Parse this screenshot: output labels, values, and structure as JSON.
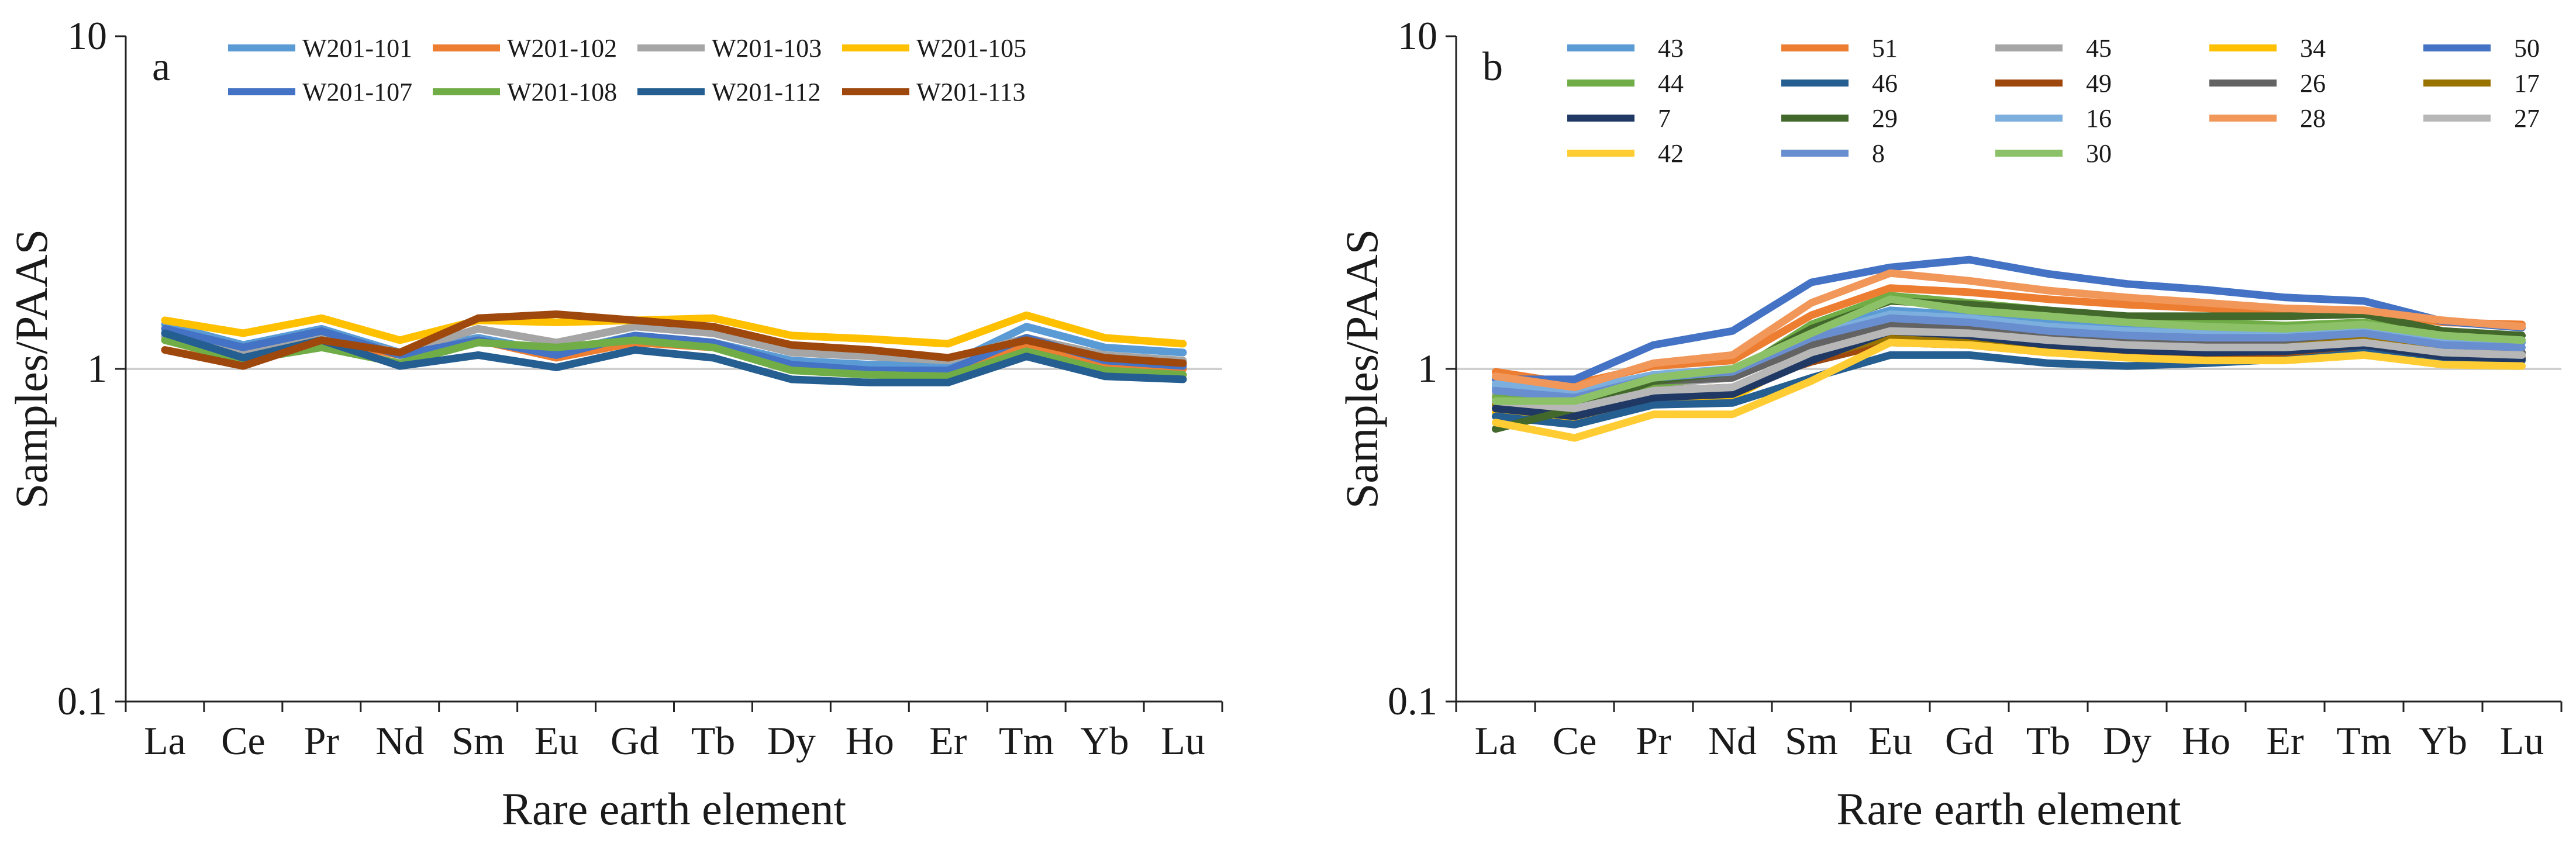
{
  "chart_data": [
    {
      "type": "line",
      "panel_label": "a",
      "xlabel": "Rare earth element",
      "ylabel": "Samples/PAAS",
      "yscale": "log",
      "ylim": [
        0.1,
        10
      ],
      "y_tick_labels": [
        "10",
        "1",
        "0.1"
      ],
      "grid": "horizontal line at 1",
      "legend_position": "top",
      "categories": [
        "La",
        "Ce",
        "Pr",
        "Nd",
        "Sm",
        "Eu",
        "Gd",
        "Tb",
        "Dy",
        "Ho",
        "Er",
        "Tm",
        "Yb",
        "Lu"
      ],
      "series": [
        {
          "name": "W201-101",
          "color": "#5b9bd5",
          "values": [
            1.36,
            1.18,
            1.32,
            1.12,
            1.24,
            1.12,
            1.26,
            1.2,
            1.06,
            1.03,
            1.03,
            1.34,
            1.16,
            1.12
          ]
        },
        {
          "name": "W201-102",
          "color": "#ed7d31",
          "values": [
            1.14,
            1.03,
            1.22,
            1.1,
            1.22,
            1.08,
            1.2,
            1.16,
            1.0,
            0.98,
            0.97,
            1.17,
            1.03,
            1.0
          ]
        },
        {
          "name": "W201-103",
          "color": "#a5a5a5",
          "values": [
            1.25,
            1.12,
            1.25,
            1.12,
            1.32,
            1.2,
            1.34,
            1.28,
            1.12,
            1.09,
            1.06,
            1.24,
            1.1,
            1.06
          ]
        },
        {
          "name": "W201-105",
          "color": "#ffc000",
          "values": [
            1.4,
            1.28,
            1.42,
            1.22,
            1.4,
            1.38,
            1.4,
            1.42,
            1.26,
            1.23,
            1.19,
            1.45,
            1.24,
            1.19
          ]
        },
        {
          "name": "W201-107",
          "color": "#4472c4",
          "values": [
            1.32,
            1.16,
            1.3,
            1.1,
            1.22,
            1.1,
            1.26,
            1.2,
            1.03,
            0.99,
            0.99,
            1.24,
            1.06,
            1.02
          ]
        },
        {
          "name": "W201-108",
          "color": "#70ad47",
          "values": [
            1.22,
            1.06,
            1.16,
            1.04,
            1.2,
            1.16,
            1.22,
            1.16,
            0.99,
            0.96,
            0.95,
            1.13,
            0.99,
            0.96
          ]
        },
        {
          "name": "W201-112",
          "color": "#255e91",
          "values": [
            1.28,
            1.08,
            1.22,
            1.02,
            1.1,
            1.01,
            1.14,
            1.08,
            0.93,
            0.91,
            0.91,
            1.09,
            0.95,
            0.93
          ]
        },
        {
          "name": "W201-113",
          "color": "#9e480e",
          "values": [
            1.14,
            1.02,
            1.22,
            1.12,
            1.42,
            1.46,
            1.4,
            1.34,
            1.18,
            1.14,
            1.08,
            1.22,
            1.08,
            1.04
          ]
        }
      ]
    },
    {
      "type": "line",
      "panel_label": "b",
      "xlabel": "Rare earth element",
      "ylabel": "Samples/PAAS",
      "yscale": "log",
      "ylim": [
        0.1,
        10
      ],
      "y_tick_labels": [
        "10",
        "1",
        "0.1"
      ],
      "grid": "horizontal line at 1",
      "legend_position": "top",
      "categories": [
        "La",
        "Ce",
        "Pr",
        "Nd",
        "Sm",
        "Eu",
        "Gd",
        "Tb",
        "Dy",
        "Ho",
        "Er",
        "Tm",
        "Yb",
        "Lu"
      ],
      "series": [
        {
          "name": "43",
          "color": "#5b9bd5",
          "values": [
            0.88,
            0.84,
            0.95,
            0.98,
            1.28,
            1.5,
            1.45,
            1.38,
            1.32,
            1.28,
            1.26,
            1.3,
            1.22,
            1.2
          ]
        },
        {
          "name": "51",
          "color": "#ed7d31",
          "values": [
            0.98,
            0.9,
            1.02,
            1.06,
            1.45,
            1.75,
            1.7,
            1.62,
            1.56,
            1.52,
            1.48,
            1.5,
            1.38,
            1.36
          ]
        },
        {
          "name": "45",
          "color": "#a5a5a5",
          "values": [
            0.84,
            0.8,
            0.9,
            0.94,
            1.22,
            1.4,
            1.35,
            1.28,
            1.23,
            1.2,
            1.18,
            1.22,
            1.14,
            1.12
          ]
        },
        {
          "name": "34",
          "color": "#ffc000",
          "values": [
            0.74,
            0.7,
            0.8,
            0.82,
            1.1,
            1.28,
            1.24,
            1.18,
            1.14,
            1.12,
            1.11,
            1.16,
            1.08,
            1.06
          ]
        },
        {
          "name": "50",
          "color": "#4472c4",
          "values": [
            0.93,
            0.93,
            1.18,
            1.3,
            1.82,
            2.02,
            2.13,
            1.93,
            1.8,
            1.73,
            1.64,
            1.6,
            1.39,
            1.33
          ]
        },
        {
          "name": "44",
          "color": "#70ad47",
          "values": [
            0.82,
            0.78,
            0.9,
            0.96,
            1.36,
            1.66,
            1.58,
            1.5,
            1.42,
            1.38,
            1.35,
            1.38,
            1.26,
            1.22
          ]
        },
        {
          "name": "46",
          "color": "#255e91",
          "values": [
            0.72,
            0.68,
            0.78,
            0.79,
            0.94,
            1.1,
            1.1,
            1.04,
            1.02,
            1.04,
            1.07,
            1.14,
            1.06,
            1.06
          ]
        },
        {
          "name": "49",
          "color": "#9e480e",
          "values": [
            0.8,
            0.72,
            0.86,
            0.88,
            1.05,
            1.2,
            1.18,
            1.12,
            1.1,
            1.1,
            1.12,
            1.18,
            1.1,
            1.08
          ]
        },
        {
          "name": "26",
          "color": "#636363",
          "values": [
            0.86,
            0.82,
            0.92,
            0.94,
            1.18,
            1.35,
            1.32,
            1.25,
            1.2,
            1.18,
            1.18,
            1.22,
            1.14,
            1.12
          ]
        },
        {
          "name": "17",
          "color": "#997300",
          "values": [
            0.78,
            0.74,
            0.84,
            0.86,
            1.08,
            1.25,
            1.24,
            1.18,
            1.15,
            1.14,
            1.16,
            1.22,
            1.12,
            1.1
          ]
        },
        {
          "name": "7",
          "color": "#203864",
          "values": [
            0.76,
            0.72,
            0.82,
            0.84,
            1.06,
            1.3,
            1.26,
            1.18,
            1.14,
            1.12,
            1.13,
            1.18,
            1.09,
            1.07
          ]
        },
        {
          "name": "29",
          "color": "#43682b",
          "values": [
            0.66,
            0.76,
            0.92,
            0.98,
            1.32,
            1.6,
            1.56,
            1.5,
            1.44,
            1.44,
            1.44,
            1.46,
            1.3,
            1.26
          ]
        },
        {
          "name": "16",
          "color": "#7cafdd",
          "values": [
            0.9,
            0.86,
            0.96,
            1.0,
            1.26,
            1.46,
            1.42,
            1.34,
            1.3,
            1.28,
            1.26,
            1.3,
            1.22,
            1.22
          ]
        },
        {
          "name": "28",
          "color": "#f1975a",
          "values": [
            0.95,
            0.88,
            1.04,
            1.1,
            1.58,
            1.94,
            1.84,
            1.72,
            1.64,
            1.58,
            1.52,
            1.5,
            1.4,
            1.34
          ]
        },
        {
          "name": "27",
          "color": "#b7b7b7",
          "values": [
            0.8,
            0.76,
            0.86,
            0.88,
            1.12,
            1.3,
            1.28,
            1.22,
            1.18,
            1.16,
            1.16,
            1.2,
            1.12,
            1.1
          ]
        },
        {
          "name": "42",
          "color": "#ffcd33",
          "values": [
            0.69,
            0.62,
            0.73,
            0.73,
            0.92,
            1.2,
            1.18,
            1.12,
            1.08,
            1.06,
            1.06,
            1.1,
            1.03,
            1.02
          ]
        },
        {
          "name": "8",
          "color": "#698ed0",
          "values": [
            0.86,
            0.82,
            0.94,
            0.98,
            1.24,
            1.42,
            1.38,
            1.3,
            1.26,
            1.24,
            1.24,
            1.28,
            1.18,
            1.16
          ]
        },
        {
          "name": "30",
          "color": "#8cc168",
          "values": [
            0.8,
            0.8,
            0.94,
            1.0,
            1.28,
            1.62,
            1.5,
            1.44,
            1.38,
            1.34,
            1.32,
            1.36,
            1.26,
            1.22
          ]
        }
      ]
    }
  ]
}
